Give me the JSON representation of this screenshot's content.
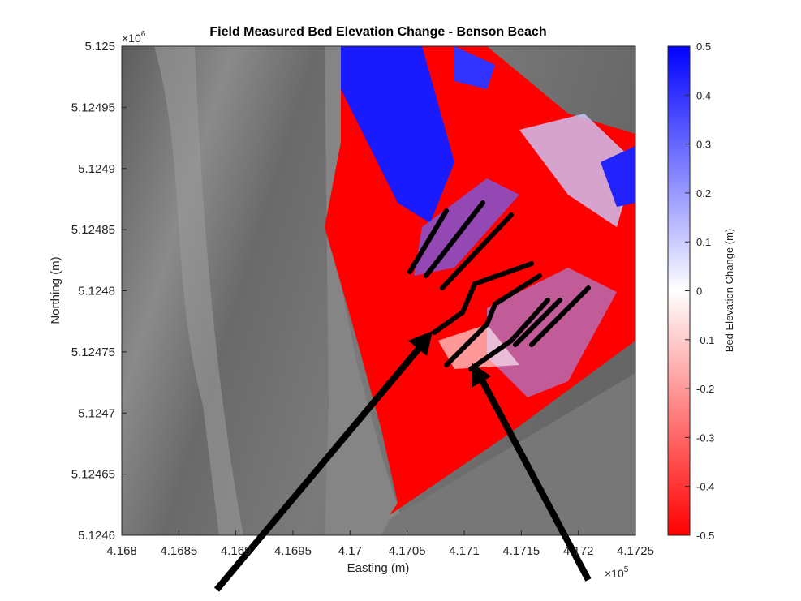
{
  "chart_data": {
    "type": "map",
    "title": "Field Measured Bed Elevation Change - Benson Beach",
    "xlabel": "Easting (m)",
    "ylabel": "Northing (m)",
    "xlim": [
      4.168,
      4.1725
    ],
    "xticks": [
      4.168,
      4.1685,
      4.169,
      4.1695,
      4.17,
      4.1705,
      4.171,
      4.1715,
      4.172,
      4.1725
    ],
    "ylim": [
      5.1246,
      5.125
    ],
    "yticks": [
      5.1246,
      5.12465,
      5.1247,
      5.12475,
      5.1248,
      5.12485,
      5.1249,
      5.12495,
      5.125
    ],
    "xscale": {
      "base": "×10",
      "power": 5
    },
    "yscale": {
      "base": "×10",
      "power": 6
    },
    "colorbar": {
      "label": "Bed Elevation Change (m)",
      "clim": [
        -0.5,
        0.5
      ],
      "ticks": [
        -0.5,
        -0.4,
        -0.3,
        -0.2,
        -0.1,
        0,
        0.1,
        0.2,
        0.3,
        0.4,
        0.5
      ],
      "colors": [
        "#ff0000",
        "#ffffff",
        "#0000ff"
      ]
    }
  }
}
